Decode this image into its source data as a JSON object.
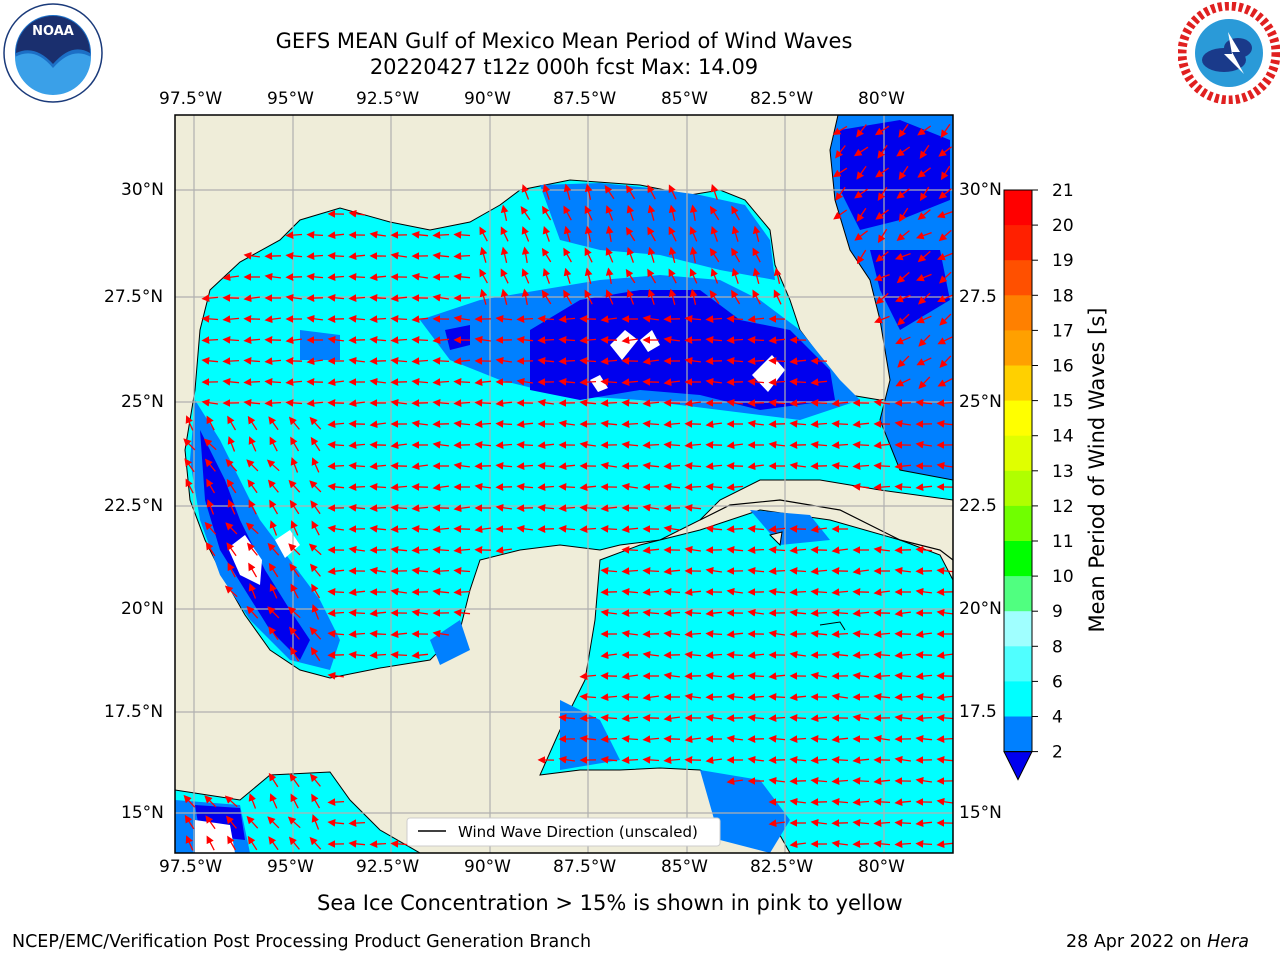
{
  "header": {
    "title_line1": "GEFS MEAN Gulf of Mexico Mean Period of Wind Waves",
    "title_line2": "20220427 t12z 000h fcst   Max: 14.09"
  },
  "logos": {
    "left": {
      "name": "NOAA",
      "ring_text": "NATIONAL OCEANIC AND ATMOSPHERIC ADMINISTRATION",
      "bottom_text": "U.S. DEPARTMENT OF COMMERCE"
    },
    "right": {
      "ring_text": "NATIONAL WEATHER SERVICE"
    }
  },
  "map": {
    "lon_ticks": [
      "97.5°W",
      "95°W",
      "92.5°W",
      "90°W",
      "87.5°W",
      "85°W",
      "82.5°W",
      "80°W"
    ],
    "lat_ticks_left": [
      "30°N",
      "27.5°N",
      "25°N",
      "22.5°N",
      "20°N",
      "17.5°N",
      "15°N"
    ],
    "lat_ticks_right": [
      "30°N",
      "27.5",
      "25°N",
      "22.5",
      "20°N",
      "17.5",
      "15°N"
    ],
    "legend_label": "Wind Wave Direction (unscaled)",
    "colors": {
      "land": "#efedd9",
      "ocean_base": "#00ffff",
      "band_2_4": "#0080ff",
      "band_0_2": "#0000ee",
      "arrow": "#ff0000",
      "grid": "#b0b0b0"
    }
  },
  "colorbar": {
    "label": "Mean Period of Wind Waves [s]",
    "ticks": [
      "21",
      "20",
      "19",
      "18",
      "17",
      "16",
      "15",
      "14",
      "13",
      "12",
      "11",
      "10",
      "9",
      "8",
      "6",
      "4",
      "2"
    ],
    "colors": [
      "#ff0000",
      "#ff2000",
      "#ff5000",
      "#ff8000",
      "#ffa000",
      "#ffd000",
      "#ffff00",
      "#e0ff00",
      "#b0ff00",
      "#70ff00",
      "#00ff00",
      "#50ff80",
      "#a0ffff",
      "#50ffff",
      "#00ffff",
      "#0080ff"
    ],
    "extend_color": "#0000ee"
  },
  "caption": "Sea Ice Concentration > 15% is shown in pink to yellow",
  "footer": {
    "left": "NCEP/EMC/Verification Post Processing Product Generation Branch",
    "date": "28 Apr 2022 on ",
    "machine": "Hera"
  }
}
